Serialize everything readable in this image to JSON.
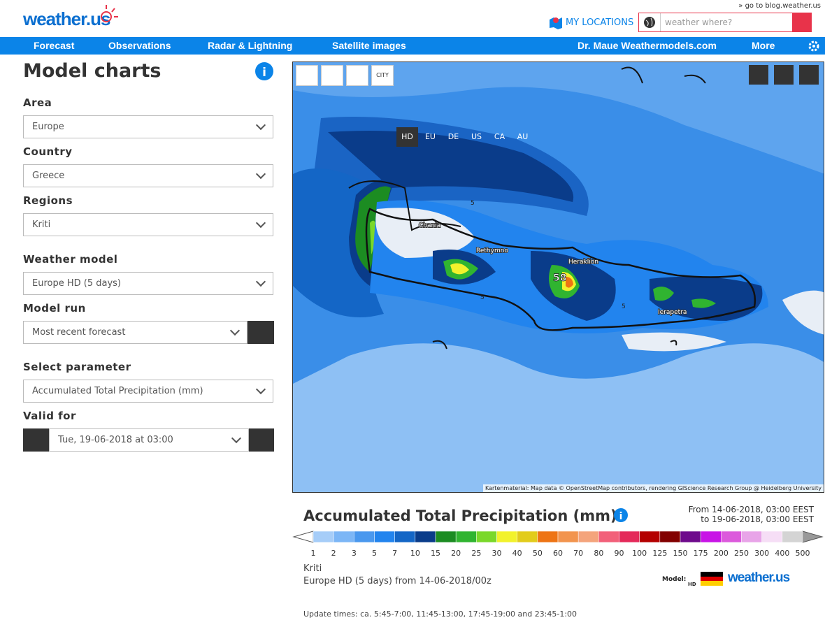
{
  "header": {
    "blog_link": "» go to blog.weather.us",
    "logo_main": "weather.",
    "logo_tld": "us",
    "my_locations": "MY LOCATIONS",
    "search_placeholder": "weather where?"
  },
  "nav": {
    "items": [
      "Forecast",
      "Observations",
      "Radar & Lightning",
      "Satellite images"
    ],
    "right": [
      "Dr. Maue Weathermodels.com",
      "More"
    ]
  },
  "sidebar": {
    "title": "Model charts",
    "fields": [
      {
        "label": "Area",
        "value": "Europe"
      },
      {
        "label": "Country",
        "value": "Greece"
      },
      {
        "label": "Regions",
        "value": "Kriti"
      },
      {
        "label": "Weather model",
        "value": "Europe HD (5 days)"
      },
      {
        "label": "Model run",
        "value": "Most recent forecast"
      },
      {
        "label": "Select parameter",
        "value": "Accumulated Total Precipitation (mm)"
      },
      {
        "label": "Valid for",
        "value": "Tue, 19-06-2018 at 03:00"
      }
    ]
  },
  "map": {
    "toolbar": [
      "CITY",
      "HD",
      "EU",
      "DE",
      "US",
      "CA",
      "AU"
    ],
    "cities": [
      "Chania",
      "Rethymno",
      "Heraklion",
      "Ierapetra"
    ],
    "max_label": "58",
    "contour_label": "5",
    "attribution": "Kartenmaterial: Map data © OpenStreetMap contributors, rendering GIScience Research Group @ Heidelberg University"
  },
  "chart": {
    "title": "Accumulated Total Precipitation (mm)",
    "from": "From 14-06-2018, 03:00 EEST",
    "to": "to 19-06-2018, 03:00 EEST",
    "legend": {
      "labels": [
        1,
        2,
        3,
        5,
        7,
        10,
        15,
        20,
        25,
        30,
        40,
        50,
        60,
        70,
        80,
        90,
        100,
        125,
        150,
        175,
        200,
        250,
        300,
        400,
        500
      ],
      "colors": [
        "#a6cdf8",
        "#7cb6f6",
        "#4a98ee",
        "#2284ee",
        "#1466c6",
        "#0a3c8a",
        "#1c8c22",
        "#30b430",
        "#7ad82a",
        "#f2f22c",
        "#e2cc1c",
        "#ee7414",
        "#f2944e",
        "#f4a47c",
        "#f2607a",
        "#e42a5a",
        "#b40000",
        "#820000",
        "#6e0a8c",
        "#c814e6",
        "#dc5adc",
        "#e8a4e8",
        "#f6def6",
        "#d4d4d4"
      ]
    },
    "region": "Kriti",
    "model_line": "Europe HD (5 days) from 14-06-2018/00z",
    "model_label": "Model:",
    "model_badge": "HD",
    "update_times": "Update times: ca. 5:45-7:00, 11:45-13:00, 17:45-19:00 and 23:45-1:00"
  }
}
